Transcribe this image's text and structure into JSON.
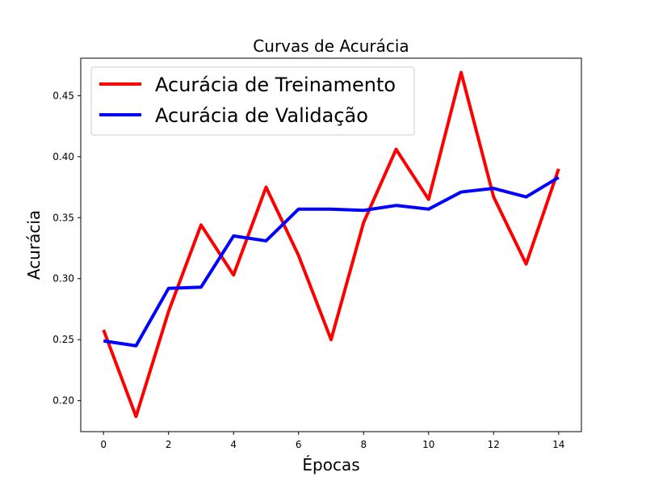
{
  "chart_data": {
    "type": "line",
    "title": "Curvas de Acurácia",
    "xlabel": "Épocas",
    "ylabel": "Acurácia",
    "x": [
      0,
      1,
      2,
      3,
      4,
      5,
      6,
      7,
      8,
      9,
      10,
      11,
      12,
      13,
      14
    ],
    "xlim": [
      -0.7,
      14.7
    ],
    "ylim": [
      0.1746,
      0.4807
    ],
    "xticks": [
      0,
      2,
      4,
      6,
      8,
      10,
      12,
      14
    ],
    "xtick_labels": [
      "0",
      "2",
      "4",
      "6",
      "8",
      "10",
      "12",
      "14"
    ],
    "yticks": [
      0.2,
      0.25,
      0.3,
      0.35,
      0.4,
      0.45
    ],
    "ytick_labels": [
      "0.20",
      "0.25",
      "0.30",
      "0.35",
      "0.40",
      "0.45"
    ],
    "grid": false,
    "legend_position": "top-left",
    "series": [
      {
        "name": "Acurácia de Treinamento",
        "color": "#ff0000",
        "values": [
          0.258,
          0.187,
          0.273,
          0.344,
          0.303,
          0.375,
          0.319,
          0.25,
          0.346,
          0.406,
          0.365,
          0.469,
          0.367,
          0.312,
          0.39
        ]
      },
      {
        "name": "Acurácia de Validação",
        "color": "#0000ff",
        "values": [
          0.249,
          0.245,
          0.292,
          0.293,
          0.335,
          0.331,
          0.357,
          0.357,
          0.356,
          0.36,
          0.357,
          0.371,
          0.374,
          0.367,
          0.383
        ]
      }
    ]
  }
}
